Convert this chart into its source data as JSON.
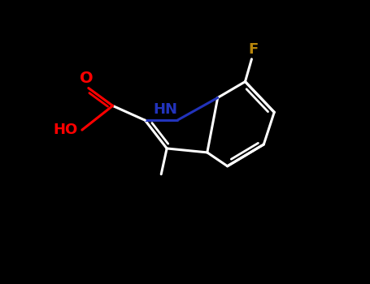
{
  "bg_color": "#000000",
  "bond_color": "#ffffff",
  "O_color": "#ff0000",
  "N_color": "#2233bb",
  "F_color": "#b8860b",
  "OH_color": "#ff0000",
  "lw": 2.2,
  "lw_inner": 2.0,
  "fs_label": 13,
  "xlim": [
    0,
    9.5
  ],
  "ylim": [
    0,
    7.3
  ]
}
